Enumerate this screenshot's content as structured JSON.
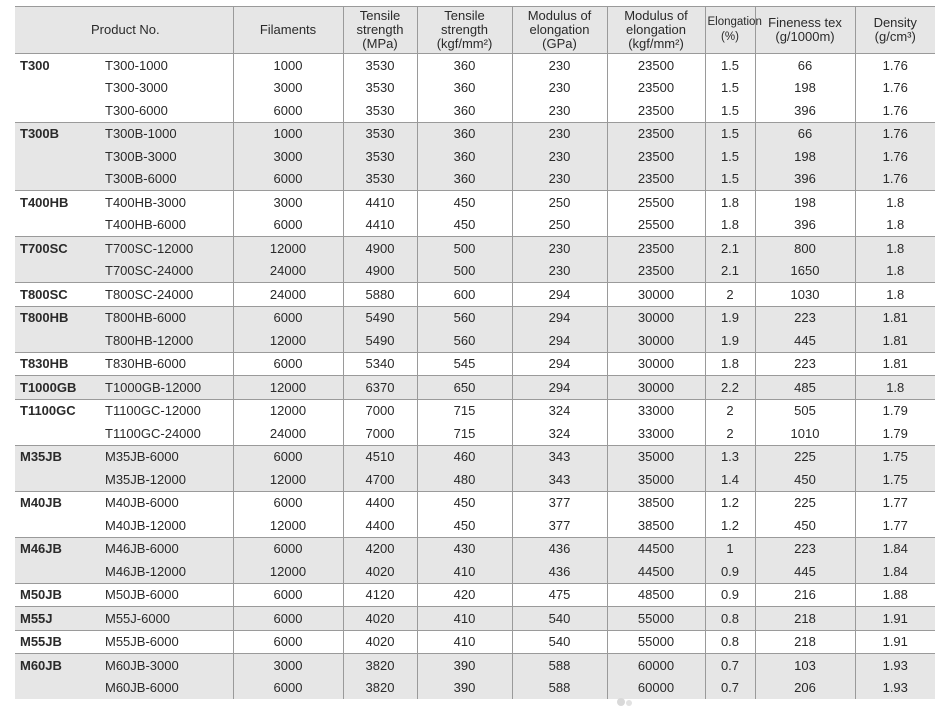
{
  "headers": {
    "product_no": "Product No.",
    "filaments": "Filaments",
    "tensile_mpa": [
      "Tensile",
      "strength",
      "(MPa)"
    ],
    "tensile_kgf": [
      "Tensile",
      "strength",
      "(kgf/mm²)"
    ],
    "modulus_gpa": [
      "Modulus of",
      "elongation",
      "(GPa)"
    ],
    "modulus_kgf": [
      "Modulus of",
      "elongation",
      "(kgf/mm²)"
    ],
    "elongation": [
      "Elongation",
      "(%)"
    ],
    "fineness": [
      "Fineness tex",
      "(g/1000m)"
    ],
    "density": [
      "Density",
      "(g/cm³)"
    ]
  },
  "rows": [
    {
      "series": "T300",
      "grade": "T300-1000",
      "filaments": "1000",
      "tensile_mpa": "3530",
      "tensile_kgf": "360",
      "modulus_gpa": "230",
      "modulus_kgf": "23500",
      "elongation": "1.5",
      "fineness": "66",
      "density": "1.76"
    },
    {
      "series": "",
      "grade": "T300-3000",
      "filaments": "3000",
      "tensile_mpa": "3530",
      "tensile_kgf": "360",
      "modulus_gpa": "230",
      "modulus_kgf": "23500",
      "elongation": "1.5",
      "fineness": "198",
      "density": "1.76"
    },
    {
      "series": "",
      "grade": "T300-6000",
      "filaments": "6000",
      "tensile_mpa": "3530",
      "tensile_kgf": "360",
      "modulus_gpa": "230",
      "modulus_kgf": "23500",
      "elongation": "1.5",
      "fineness": "396",
      "density": "1.76"
    },
    {
      "series": "T300B",
      "grade": "T300B-1000",
      "filaments": "1000",
      "tensile_mpa": "3530",
      "tensile_kgf": "360",
      "modulus_gpa": "230",
      "modulus_kgf": "23500",
      "elongation": "1.5",
      "fineness": "66",
      "density": "1.76"
    },
    {
      "series": "",
      "grade": "T300B-3000",
      "filaments": "3000",
      "tensile_mpa": "3530",
      "tensile_kgf": "360",
      "modulus_gpa": "230",
      "modulus_kgf": "23500",
      "elongation": "1.5",
      "fineness": "198",
      "density": "1.76"
    },
    {
      "series": "",
      "grade": "T300B-6000",
      "filaments": "6000",
      "tensile_mpa": "3530",
      "tensile_kgf": "360",
      "modulus_gpa": "230",
      "modulus_kgf": "23500",
      "elongation": "1.5",
      "fineness": "396",
      "density": "1.76"
    },
    {
      "series": "T400HB",
      "grade": "T400HB-3000",
      "filaments": "3000",
      "tensile_mpa": "4410",
      "tensile_kgf": "450",
      "modulus_gpa": "250",
      "modulus_kgf": "25500",
      "elongation": "1.8",
      "fineness": "198",
      "density": "1.8"
    },
    {
      "series": "",
      "grade": "T400HB-6000",
      "filaments": "6000",
      "tensile_mpa": "4410",
      "tensile_kgf": "450",
      "modulus_gpa": "250",
      "modulus_kgf": "25500",
      "elongation": "1.8",
      "fineness": "396",
      "density": "1.8"
    },
    {
      "series": "T700SC",
      "grade": "T700SC-12000",
      "filaments": "12000",
      "tensile_mpa": "4900",
      "tensile_kgf": "500",
      "modulus_gpa": "230",
      "modulus_kgf": "23500",
      "elongation": "2.1",
      "fineness": "800",
      "density": "1.8"
    },
    {
      "series": "",
      "grade": "T700SC-24000",
      "filaments": "24000",
      "tensile_mpa": "4900",
      "tensile_kgf": "500",
      "modulus_gpa": "230",
      "modulus_kgf": "23500",
      "elongation": "2.1",
      "fineness": "1650",
      "density": "1.8"
    },
    {
      "series": "T800SC",
      "grade": "T800SC-24000",
      "filaments": "24000",
      "tensile_mpa": "5880",
      "tensile_kgf": "600",
      "modulus_gpa": "294",
      "modulus_kgf": "30000",
      "elongation": "2",
      "fineness": "1030",
      "density": "1.8"
    },
    {
      "series": "T800HB",
      "grade": "T800HB-6000",
      "filaments": "6000",
      "tensile_mpa": "5490",
      "tensile_kgf": "560",
      "modulus_gpa": "294",
      "modulus_kgf": "30000",
      "elongation": "1.9",
      "fineness": "223",
      "density": "1.81"
    },
    {
      "series": "",
      "grade": "T800HB-12000",
      "filaments": "12000",
      "tensile_mpa": "5490",
      "tensile_kgf": "560",
      "modulus_gpa": "294",
      "modulus_kgf": "30000",
      "elongation": "1.9",
      "fineness": "445",
      "density": "1.81"
    },
    {
      "series": "T830HB",
      "grade": "T830HB-6000",
      "filaments": "6000",
      "tensile_mpa": "5340",
      "tensile_kgf": "545",
      "modulus_gpa": "294",
      "modulus_kgf": "30000",
      "elongation": "1.8",
      "fineness": "223",
      "density": "1.81"
    },
    {
      "series": "T1000GB",
      "grade": "T1000GB-12000",
      "filaments": "12000",
      "tensile_mpa": "6370",
      "tensile_kgf": "650",
      "modulus_gpa": "294",
      "modulus_kgf": "30000",
      "elongation": "2.2",
      "fineness": "485",
      "density": "1.8"
    },
    {
      "series": "T1100GC",
      "grade": "T1100GC-12000",
      "filaments": "12000",
      "tensile_mpa": "7000",
      "tensile_kgf": "715",
      "modulus_gpa": "324",
      "modulus_kgf": "33000",
      "elongation": "2",
      "fineness": "505",
      "density": "1.79"
    },
    {
      "series": "",
      "grade": "T1100GC-24000",
      "filaments": "24000",
      "tensile_mpa": "7000",
      "tensile_kgf": "715",
      "modulus_gpa": "324",
      "modulus_kgf": "33000",
      "elongation": "2",
      "fineness": "1010",
      "density": "1.79"
    },
    {
      "series": "M35JB",
      "grade": "M35JB-6000",
      "filaments": "6000",
      "tensile_mpa": "4510",
      "tensile_kgf": "460",
      "modulus_gpa": "343",
      "modulus_kgf": "35000",
      "elongation": "1.3",
      "fineness": "225",
      "density": "1.75"
    },
    {
      "series": "",
      "grade": "M35JB-12000",
      "filaments": "12000",
      "tensile_mpa": "4700",
      "tensile_kgf": "480",
      "modulus_gpa": "343",
      "modulus_kgf": "35000",
      "elongation": "1.4",
      "fineness": "450",
      "density": "1.75"
    },
    {
      "series": "M40JB",
      "grade": "M40JB-6000",
      "filaments": "6000",
      "tensile_mpa": "4400",
      "tensile_kgf": "450",
      "modulus_gpa": "377",
      "modulus_kgf": "38500",
      "elongation": "1.2",
      "fineness": "225",
      "density": "1.77"
    },
    {
      "series": "",
      "grade": "M40JB-12000",
      "filaments": "12000",
      "tensile_mpa": "4400",
      "tensile_kgf": "450",
      "modulus_gpa": "377",
      "modulus_kgf": "38500",
      "elongation": "1.2",
      "fineness": "450",
      "density": "1.77"
    },
    {
      "series": "M46JB",
      "grade": "M46JB-6000",
      "filaments": "6000",
      "tensile_mpa": "4200",
      "tensile_kgf": "430",
      "modulus_gpa": "436",
      "modulus_kgf": "44500",
      "elongation": "1",
      "fineness": "223",
      "density": "1.84"
    },
    {
      "series": "",
      "grade": "M46JB-12000",
      "filaments": "12000",
      "tensile_mpa": "4020",
      "tensile_kgf": "410",
      "modulus_gpa": "436",
      "modulus_kgf": "44500",
      "elongation": "0.9",
      "fineness": "445",
      "density": "1.84"
    },
    {
      "series": "M50JB",
      "grade": "M50JB-6000",
      "filaments": "6000",
      "tensile_mpa": "4120",
      "tensile_kgf": "420",
      "modulus_gpa": "475",
      "modulus_kgf": "48500",
      "elongation": "0.9",
      "fineness": "216",
      "density": "1.88"
    },
    {
      "series": "M55J",
      "grade": "M55J-6000",
      "filaments": "6000",
      "tensile_mpa": "4020",
      "tensile_kgf": "410",
      "modulus_gpa": "540",
      "modulus_kgf": "55000",
      "elongation": "0.8",
      "fineness": "218",
      "density": "1.91"
    },
    {
      "series": "M55JB",
      "grade": "M55JB-6000",
      "filaments": "6000",
      "tensile_mpa": "4020",
      "tensile_kgf": "410",
      "modulus_gpa": "540",
      "modulus_kgf": "55000",
      "elongation": "0.8",
      "fineness": "218",
      "density": "1.91"
    },
    {
      "series": "M60JB",
      "grade": "M60JB-3000",
      "filaments": "3000",
      "tensile_mpa": "3820",
      "tensile_kgf": "390",
      "modulus_gpa": "588",
      "modulus_kgf": "60000",
      "elongation": "0.7",
      "fineness": "103",
      "density": "1.93"
    },
    {
      "series": "",
      "grade": "M60JB-6000",
      "filaments": "6000",
      "tensile_mpa": "3820",
      "tensile_kgf": "390",
      "modulus_gpa": "588",
      "modulus_kgf": "60000",
      "elongation": "0.7",
      "fineness": "206",
      "density": "1.93"
    }
  ]
}
